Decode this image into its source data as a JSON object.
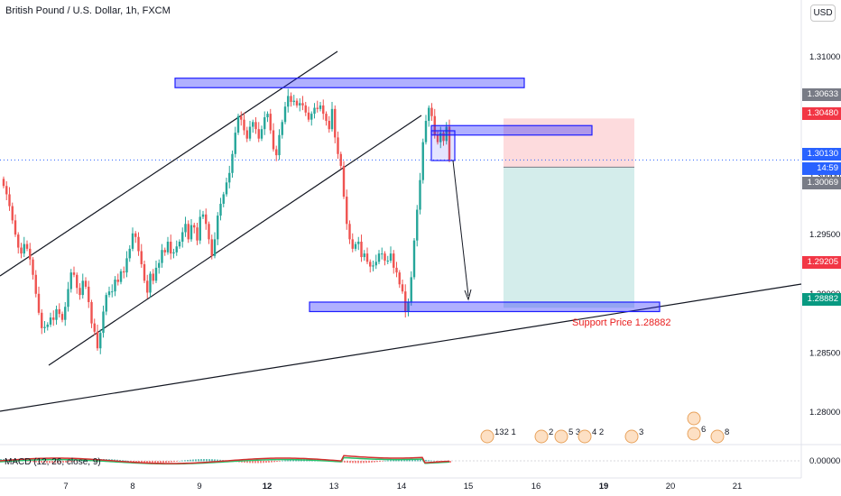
{
  "header": {
    "title": "British Pound / U.S. Dollar, 1h, FXCM",
    "currency_button": "USD"
  },
  "indicator": {
    "label": "MACD (12, 26, close, 9)"
  },
  "annotations": {
    "support_label": "Support Price 1.28882"
  },
  "price_tags": [
    {
      "text": "1.30633",
      "color": "#787b86"
    },
    {
      "text": "1.30480",
      "color": "#f23645"
    },
    {
      "text": "1.30130",
      "color": "#2962ff"
    },
    {
      "text": "14:59",
      "color": "#2962ff"
    },
    {
      "text": "1.30069",
      "color": "#787b86"
    },
    {
      "text": "1.29205",
      "color": "#f23645"
    },
    {
      "text": "1.28882",
      "color": "#089981"
    }
  ],
  "events": [
    {
      "label": "132 1"
    },
    {
      "label": "2"
    },
    {
      "label": "5 3"
    },
    {
      "label": "4 2"
    },
    {
      "label": "3"
    },
    {
      "label": "6"
    },
    {
      "label": "8"
    }
  ],
  "chart_data": {
    "type": "candlestick",
    "title": "British Pound / U.S. Dollar, 1h, FXCM",
    "x_tick_labels": [
      "7",
      "8",
      "9",
      "12",
      "13",
      "14",
      "15",
      "16",
      "19",
      "20",
      "21"
    ],
    "y_tick_labels": [
      "1.31000",
      "1.30500",
      "1.30000",
      "1.29500",
      "1.29000",
      "1.28500",
      "1.28000"
    ],
    "macd_tick_label": "0.00000",
    "ylim": [
      1.2775,
      1.3148
    ],
    "colors": {
      "up": "#26a69a",
      "down": "#ef5350",
      "zone": "#1e1eff",
      "target": "#26a69a",
      "stop": "#f23645"
    },
    "levels": {
      "current": 1.3013,
      "resistance_zone": [
        1.3074,
        1.3082
      ],
      "supply_zone": [
        1.3034,
        1.3042
      ],
      "support_zone": [
        1.2885,
        1.2893
      ],
      "support_price": 1.28882,
      "stop_loss": 1.3048,
      "entry": 1.30069,
      "target": 1.28882,
      "last_high": 1.30633,
      "prior_low": 1.29205
    },
    "series": [
      {
        "close": [
          1.2991,
          1.2984,
          1.2974,
          1.2962,
          1.295,
          1.2939,
          1.2934,
          1.2942,
          1.2938,
          1.2929,
          1.2916,
          1.29,
          1.2884,
          1.2871,
          1.2872,
          1.2874,
          1.288,
          1.2878,
          1.2887,
          1.2883,
          1.2878,
          1.2889,
          1.2904,
          1.2918,
          1.2916,
          1.2905,
          1.2899,
          1.2911,
          1.2906,
          1.2893,
          1.2875,
          1.2868,
          1.2854,
          1.2867,
          1.2885,
          1.2899,
          1.2902,
          1.2902,
          1.2912,
          1.291,
          1.2919,
          1.2918,
          1.293,
          1.2938,
          1.2951,
          1.2948,
          1.2936,
          1.2925,
          1.2911,
          1.2901,
          1.2917,
          1.2911,
          1.2922,
          1.2926,
          1.2937,
          1.2935,
          1.2944,
          1.2934,
          1.2935,
          1.294,
          1.2944,
          1.2952,
          1.2959,
          1.2946,
          1.2958,
          1.2956,
          1.2945,
          1.2965,
          1.2967,
          1.2959,
          1.2946,
          1.2932,
          1.2946,
          1.2966,
          1.2976,
          1.2984,
          1.2994,
          1.3002,
          1.3018,
          1.3036,
          1.305,
          1.3047,
          1.3038,
          1.3031,
          1.3041,
          1.3045,
          1.3039,
          1.3031,
          1.3039,
          1.3049,
          1.3052,
          1.3038,
          1.3022,
          1.3017,
          1.3034,
          1.3045,
          1.3058,
          1.3067,
          1.3062,
          1.3063,
          1.3059,
          1.3061,
          1.3059,
          1.3053,
          1.3047,
          1.3052,
          1.3057,
          1.3056,
          1.3059,
          1.3052,
          1.3046,
          1.3039,
          1.3056,
          1.3032,
          1.3018,
          1.3008,
          1.2982,
          1.2959,
          1.2946,
          1.2938,
          1.2942,
          1.2944,
          1.2931,
          1.2934,
          1.2927,
          1.2923,
          1.2924,
          1.2927,
          1.2934,
          1.2934,
          1.2928,
          1.2928,
          1.2934,
          1.2922,
          1.2918,
          1.2908,
          1.2902,
          1.2885,
          1.2893,
          1.2914,
          1.2945,
          1.2971,
          1.2996,
          1.3028,
          1.3046,
          1.3057,
          1.305,
          1.3034,
          1.3028,
          1.3036,
          1.3029,
          1.3041,
          1.3013
        ]
      }
    ]
  }
}
